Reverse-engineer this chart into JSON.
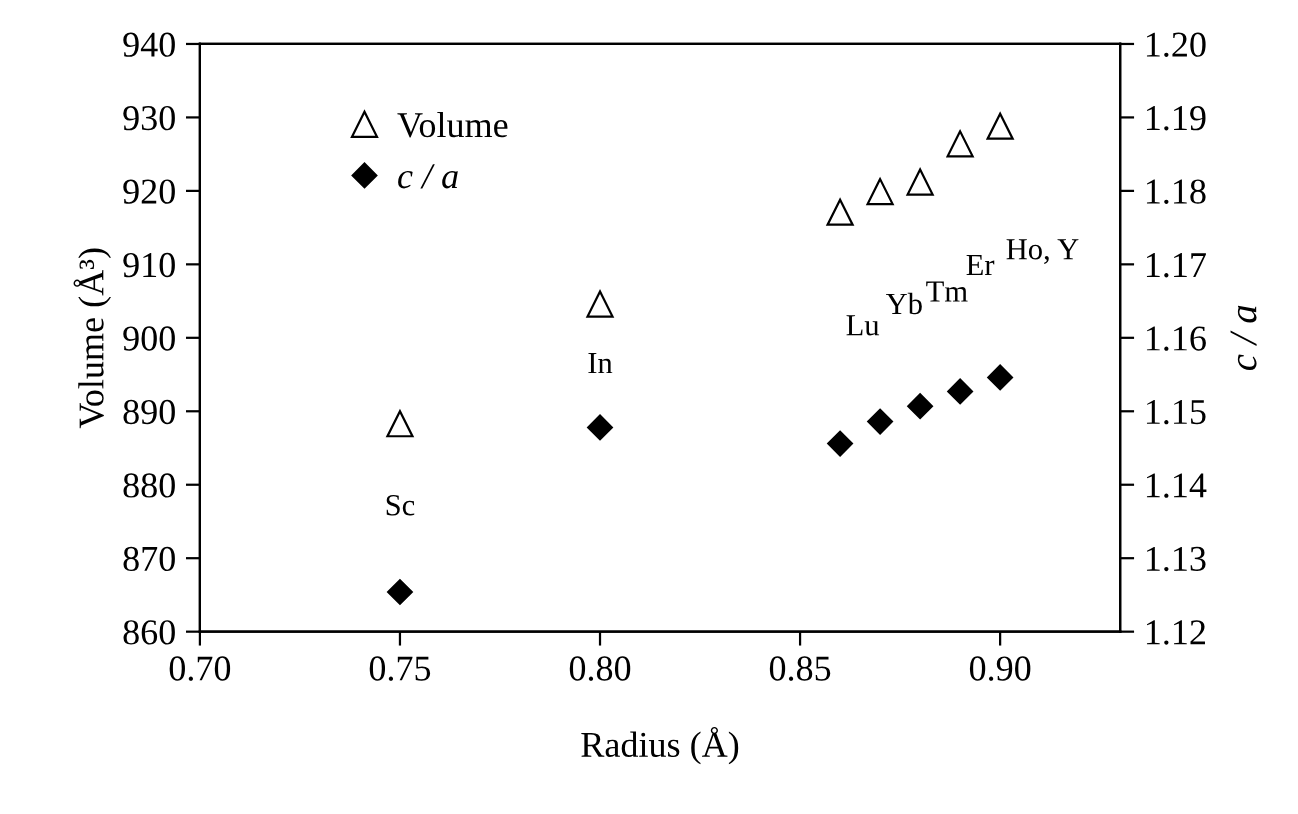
{
  "chart_data": {
    "type": "scatter",
    "xlabel": "Radius (Å)",
    "ylabel": "Volume (Å³)",
    "y2label": "c / a",
    "x": [
      0.75,
      0.8,
      0.86,
      0.87,
      0.88,
      0.89,
      0.9
    ],
    "series": [
      {
        "name": "Volume",
        "color": "#000000",
        "marker": "triangle",
        "values": [
          888.3,
          904.6,
          917.1,
          919.9,
          921.2,
          926.4,
          928.8
        ]
      },
      {
        "name": "c / a",
        "color": "#000000",
        "marker": "diamond",
        "axis": "y2",
        "values": [
          1.1254,
          1.1478,
          1.1456,
          1.1486,
          1.1507,
          1.1527,
          1.1546
        ]
      }
    ],
    "xlim": [
      0.7,
      0.93
    ],
    "xticks": [
      {
        "value": 0.7,
        "label": "0.70"
      },
      0.75,
      {
        "value": 0.8,
        "label": "0.80"
      },
      0.85,
      {
        "value": 0.9,
        "label": "0.90"
      }
    ],
    "ylim": [
      860,
      940
    ],
    "yticks": [
      860,
      870,
      880,
      890,
      900,
      910,
      920,
      930,
      940
    ],
    "y2lim": [
      1.12,
      1.2
    ],
    "y2ticks": [
      1.12,
      1.13,
      1.14,
      1.15,
      1.16,
      1.17,
      1.18,
      1.19,
      {
        "value": 1.2,
        "label": "1.20"
      }
    ],
    "annotations": [
      "Sc",
      "In",
      "Lu",
      "Yb",
      "Tm",
      "Er",
      "Ho, Y"
    ],
    "legend": "top left",
    "grid": false
  }
}
